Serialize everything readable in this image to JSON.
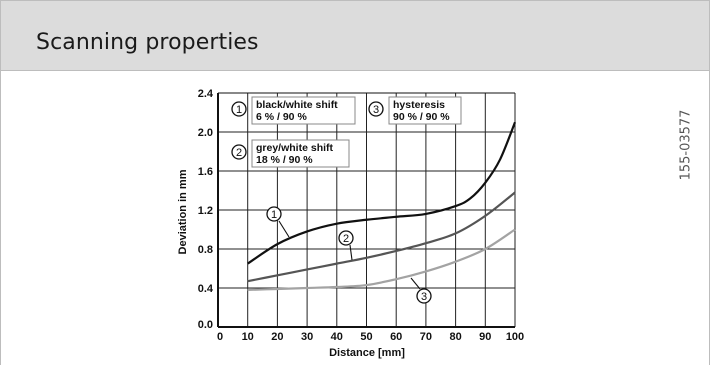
{
  "header": {
    "title": "Scanning properties"
  },
  "doc_id": "155-03577",
  "chart_data": {
    "type": "line",
    "xlabel": "Distance [mm]",
    "ylabel": "Deviation in mm",
    "xlim": [
      0,
      100
    ],
    "ylim": [
      0,
      2.4
    ],
    "x_ticks": [
      "0",
      "10",
      "20",
      "30",
      "40",
      "50",
      "60",
      "70",
      "80",
      "90",
      "100"
    ],
    "y_ticks": [
      "0.0",
      "0.4",
      "0.8",
      "1.2",
      "1.6",
      "2.0",
      "2.4"
    ],
    "grid": true,
    "series": [
      {
        "marker": "1",
        "color": "#111111",
        "x": [
          10,
          20,
          30,
          40,
          50,
          60,
          70,
          80,
          85,
          90,
          95,
          100
        ],
        "y": [
          0.65,
          0.85,
          0.98,
          1.06,
          1.1,
          1.13,
          1.16,
          1.24,
          1.32,
          1.48,
          1.72,
          2.1
        ]
      },
      {
        "marker": "2",
        "color": "#555555",
        "x": [
          10,
          20,
          30,
          40,
          50,
          60,
          70,
          80,
          90,
          100
        ],
        "y": [
          0.47,
          0.53,
          0.59,
          0.65,
          0.71,
          0.78,
          0.86,
          0.96,
          1.14,
          1.38
        ]
      },
      {
        "marker": "3",
        "color": "#a3a3a3",
        "x": [
          10,
          20,
          30,
          40,
          50,
          60,
          70,
          80,
          90,
          100
        ],
        "y": [
          0.38,
          0.39,
          0.4,
          0.41,
          0.43,
          0.49,
          0.57,
          0.67,
          0.8,
          1.0
        ]
      }
    ],
    "legend": [
      {
        "number": "1",
        "label": "black/white shift",
        "value": "6 % / 90 %"
      },
      {
        "number": "2",
        "label": "grey/white shift",
        "value": "18 % / 90 %"
      },
      {
        "number": "3",
        "label": "hysteresis",
        "value": "90 % / 90 %"
      }
    ]
  }
}
